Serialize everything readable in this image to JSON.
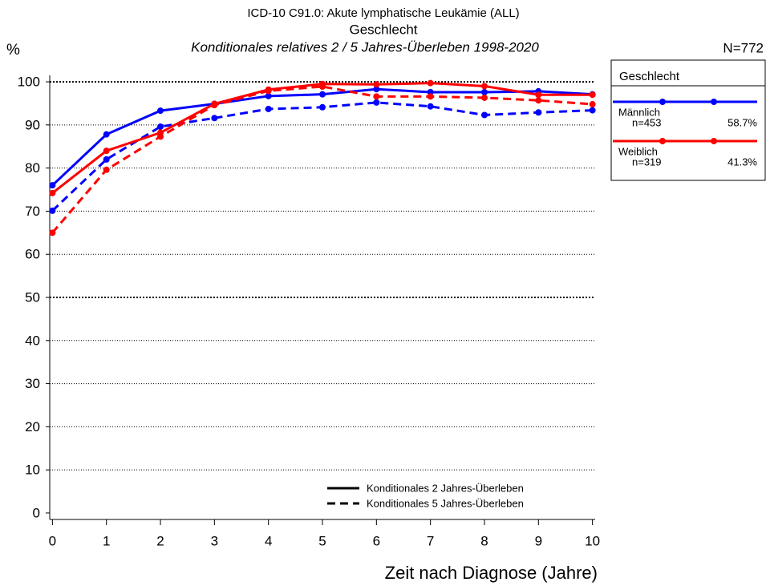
{
  "chart_data": {
    "type": "line",
    "title": "ICD-10 C91.0: Akute lymphatische Leukämie (ALL)",
    "subtitle": "Geschlecht",
    "subtitle2": "Konditionales relatives 2 / 5 Jahres-Überleben 1998-2020",
    "y_label": "%",
    "x_label": "Zeit nach Diagnose (Jahre)",
    "total": {
      "value": 772,
      "label": "N=772"
    },
    "legend_title": "Geschlecht",
    "x": [
      0,
      1,
      2,
      3,
      4,
      5,
      6,
      7,
      8,
      9,
      10
    ],
    "xlim": [
      -0.05,
      10.05
    ],
    "xticks": [
      0,
      1,
      2,
      3,
      4,
      5,
      6,
      7,
      8,
      9,
      10
    ],
    "ylim": [
      -1.5,
      101.5
    ],
    "yticks": [
      0,
      10,
      20,
      30,
      40,
      50,
      60,
      70,
      80,
      90,
      100
    ],
    "grid": true,
    "line_styles": [
      {
        "name": "Konditionales 2 Jahres-Überleben",
        "dashed": false
      },
      {
        "name": "Konditionales 5 Jahres-Überleben",
        "dashed": true
      }
    ],
    "series": [
      {
        "name": "Männlich",
        "color": "#0000ff",
        "n": {
          "value": 453,
          "label": "n=453"
        },
        "share": {
          "value": 58.7,
          "label": "58.7%"
        },
        "values_2y": [
          76,
          87.8,
          93.3,
          94.9,
          96.7,
          97.1,
          98.3,
          97.6,
          97.6,
          97.8,
          97.1
        ],
        "values_5y": [
          70.1,
          82,
          89.6,
          91.6,
          93.7,
          94.1,
          95.2,
          94.3,
          92.3,
          92.9,
          93.4
        ]
      },
      {
        "name": "Weiblich",
        "color": "#ff0000",
        "n": {
          "value": 319,
          "label": "n=319"
        },
        "share": {
          "value": 41.3,
          "label": "41.3%"
        },
        "values_2y": [
          74.2,
          84,
          88.2,
          94.9,
          98.2,
          99.5,
          99.4,
          99.7,
          99,
          97,
          97
        ],
        "values_5y": [
          65,
          79.6,
          87.3,
          94.6,
          97.9,
          98.9,
          96.6,
          96.6,
          96.3,
          95.7,
          94.8
        ]
      }
    ]
  }
}
